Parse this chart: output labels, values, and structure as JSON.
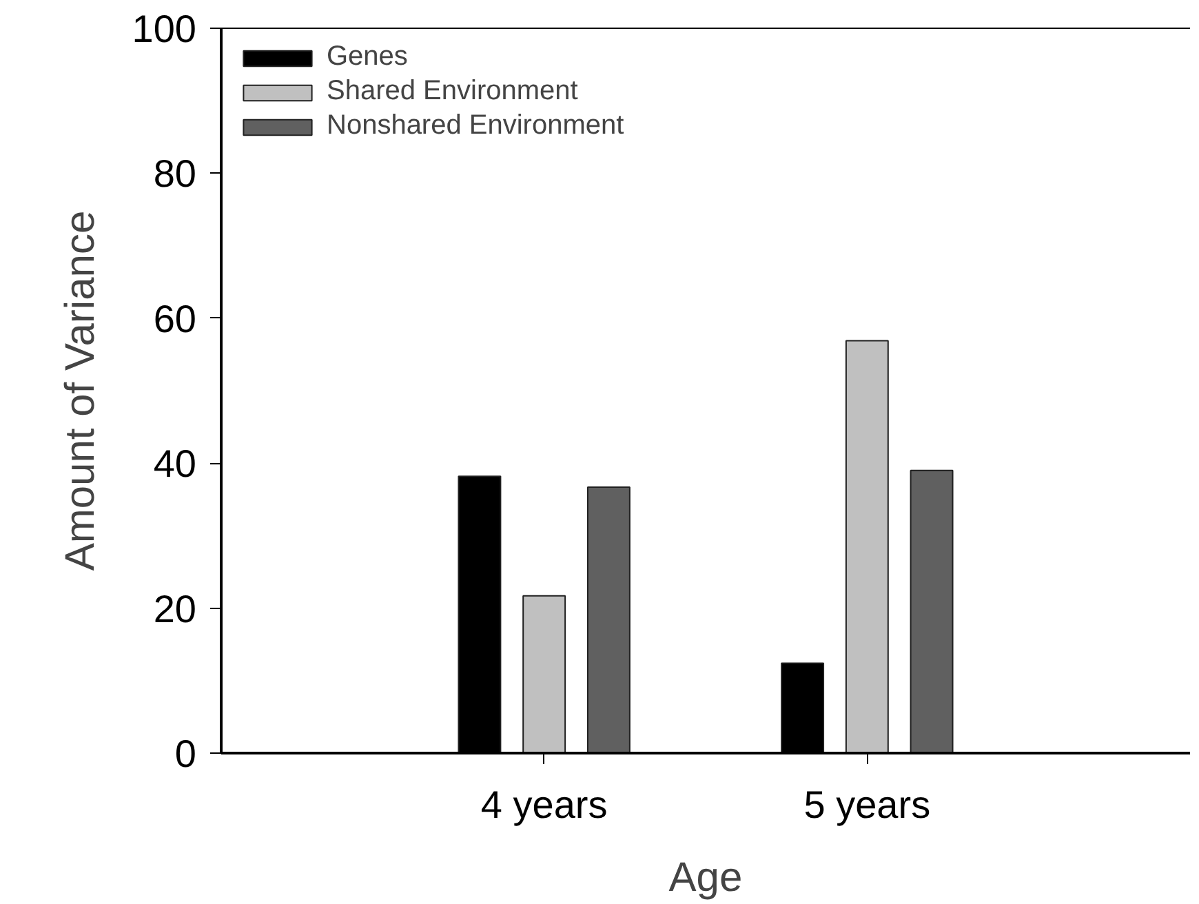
{
  "chart_data": {
    "type": "bar",
    "xlabel": "Age",
    "ylabel": "Amount of Variance",
    "categories": [
      "4 years",
      "5 years"
    ],
    "series": [
      {
        "name": "Genes",
        "color": "#000000",
        "values": [
          38.2,
          12.4
        ]
      },
      {
        "name": "Shared Environment",
        "color": "#c0c0c0",
        "values": [
          21.7,
          56.9
        ]
      },
      {
        "name": "Nonshared Environment",
        "color": "#606060",
        "values": [
          36.7,
          39.0
        ]
      }
    ],
    "ylim": [
      0,
      100
    ],
    "yticks": [
      0,
      20,
      40,
      60,
      80,
      100
    ],
    "grid": false,
    "legend": "top left"
  }
}
